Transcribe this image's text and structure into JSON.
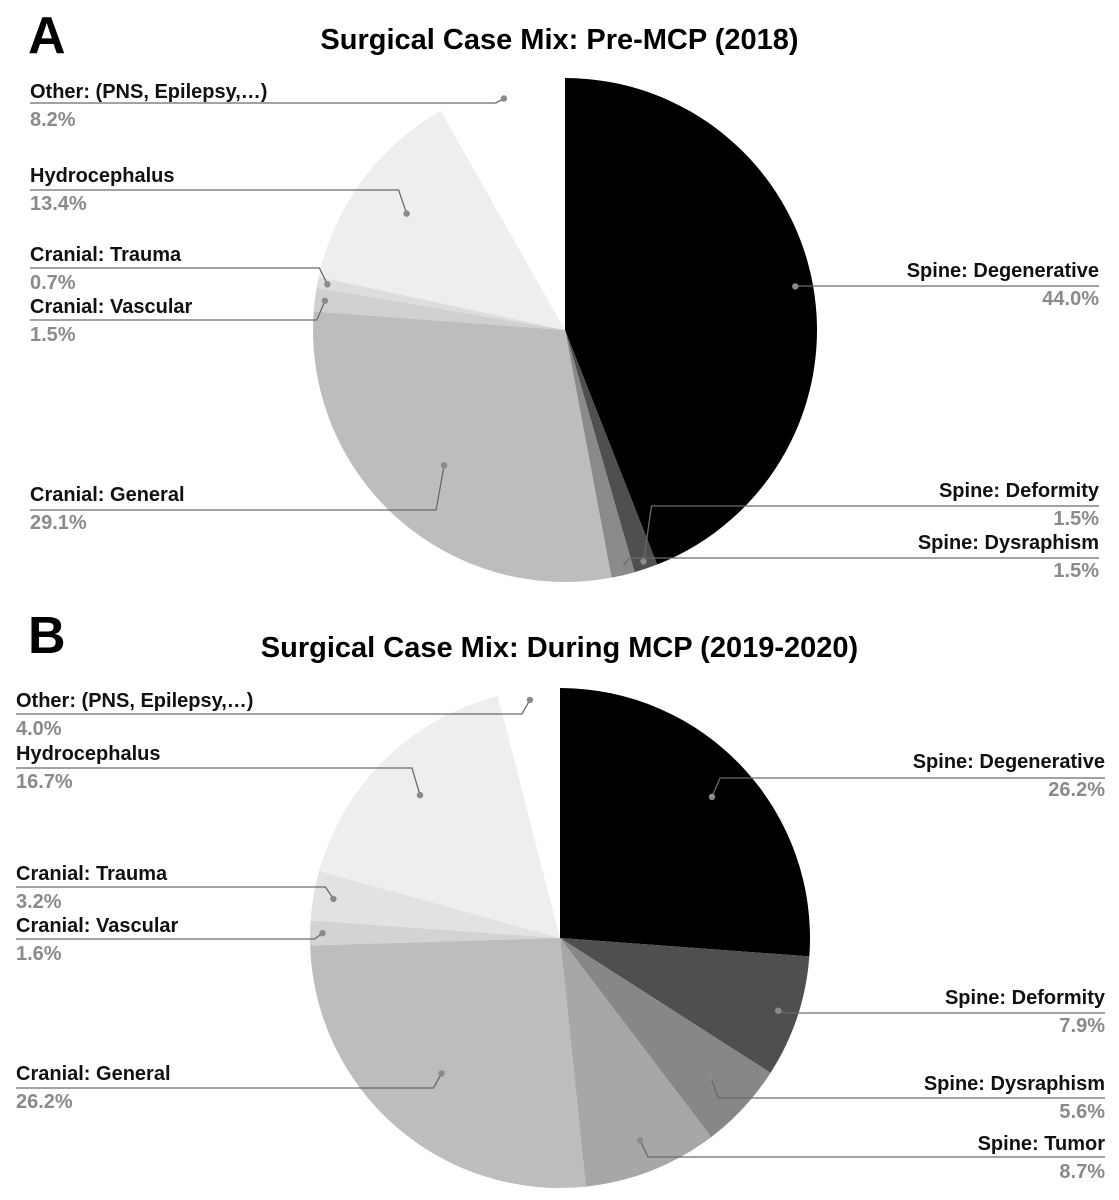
{
  "chart_data": [
    {
      "panel_label": "A",
      "title": "Surgical Case Mix: Pre-MCP (2018)",
      "type": "pie",
      "start": "12 o'clock",
      "direction": "clockwise",
      "slices": [
        {
          "label": "Spine: Degenerative",
          "value": 44.0,
          "value_label": "44.0%",
          "color": "#000000"
        },
        {
          "label": "Spine: Deformity",
          "value": 1.5,
          "value_label": "1.5%",
          "color": "#4f4f4f"
        },
        {
          "label": "Spine: Dysraphism",
          "value": 1.5,
          "value_label": "1.5%",
          "color": "#8a8a8a"
        },
        {
          "label": "Cranial: General",
          "value": 29.1,
          "value_label": "29.1%",
          "color": "#bdbdbd"
        },
        {
          "label": "Cranial: Vascular",
          "value": 1.5,
          "value_label": "1.5%",
          "color": "#d0d0d0"
        },
        {
          "label": "Cranial: Trauma",
          "value": 0.7,
          "value_label": "0.7%",
          "color": "#dddddd"
        },
        {
          "label": "Hydrocephalus",
          "value": 13.4,
          "value_label": "13.4%",
          "color": "#eeeeee"
        },
        {
          "label": "Other: (PNS, Epilepsy,…)",
          "value": 8.2,
          "value_label": "8.2%",
          "color": "#ffffff"
        }
      ]
    },
    {
      "panel_label": "B",
      "title": "Surgical Case Mix: During MCP (2019-2020)",
      "type": "pie",
      "start": "12 o'clock",
      "direction": "clockwise",
      "slices": [
        {
          "label": "Spine: Degenerative",
          "value": 26.2,
          "value_label": "26.2%",
          "color": "#000000"
        },
        {
          "label": "Spine: Deformity",
          "value": 7.9,
          "value_label": "7.9%",
          "color": "#4f4f4f"
        },
        {
          "label": "Spine: Dysraphism",
          "value": 5.6,
          "value_label": "5.6%",
          "color": "#878787"
        },
        {
          "label": "Spine: Tumor",
          "value": 8.7,
          "value_label": "8.7%",
          "color": "#a7a7a7"
        },
        {
          "label": "Cranial: General",
          "value": 26.2,
          "value_label": "26.2%",
          "color": "#bdbdbd"
        },
        {
          "label": "Cranial: Vascular",
          "value": 1.6,
          "value_label": "1.6%",
          "color": "#d3d3d3"
        },
        {
          "label": "Cranial: Trauma",
          "value": 3.2,
          "value_label": "3.2%",
          "color": "#e2e2e2"
        },
        {
          "label": "Hydrocephalus",
          "value": 16.7,
          "value_label": "16.7%",
          "color": "#eeeeee"
        },
        {
          "label": "Other: (PNS, Epilepsy,…)",
          "value": 4.0,
          "value_label": "4.0%",
          "color": "#ffffff"
        }
      ]
    }
  ]
}
